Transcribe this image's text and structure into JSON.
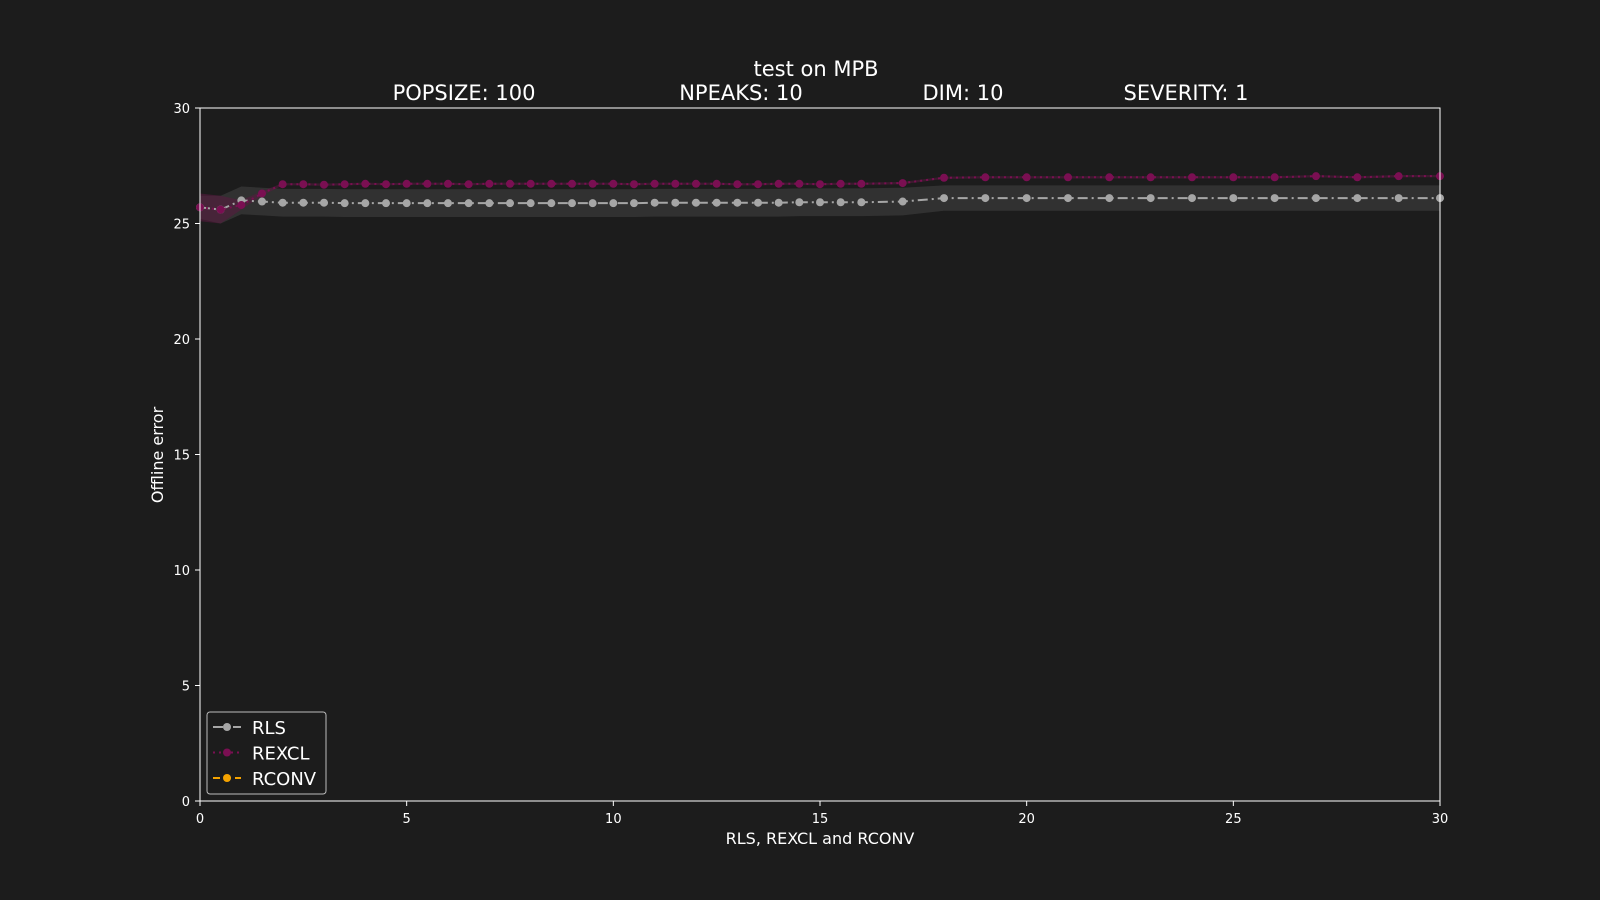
{
  "chart_data": {
    "type": "line",
    "title": "test on MPB",
    "subtitle": {
      "popsize": "POPSIZE: 100",
      "npeaks": "NPEAKS: 10",
      "dim": "DIM: 10",
      "severity": "SEVERITY: 1"
    },
    "xlabel": "RLS, REXCL and RCONV",
    "ylabel": "Offline error",
    "xlim": [
      0,
      30
    ],
    "ylim": [
      0,
      30
    ],
    "xticks": [
      0,
      5,
      10,
      15,
      20,
      25,
      30
    ],
    "yticks": [
      0,
      5,
      10,
      15,
      20,
      25,
      30
    ],
    "grid": false,
    "legend_position": "lower-left",
    "background_color": "#1c1c1c",
    "series": [
      {
        "name": "RLS",
        "color": "#a6a6a6",
        "linestyle": "dashdot",
        "band_color": "#444444",
        "x": [
          0,
          0.5,
          1,
          1.5,
          2,
          2.5,
          3,
          3.5,
          4,
          4.5,
          5,
          5.5,
          6,
          6.5,
          7,
          7.5,
          8,
          8.5,
          9,
          9.5,
          10,
          10.5,
          11,
          11.5,
          12,
          12.5,
          13,
          13.5,
          14,
          14.5,
          15,
          15.5,
          16,
          17,
          18,
          19,
          20,
          21,
          22,
          23,
          24,
          25,
          26,
          27,
          28,
          29,
          30
        ],
        "values": [
          25.7,
          25.6,
          26.0,
          25.95,
          25.9,
          25.9,
          25.9,
          25.88,
          25.88,
          25.88,
          25.88,
          25.88,
          25.88,
          25.88,
          25.88,
          25.88,
          25.88,
          25.88,
          25.88,
          25.88,
          25.88,
          25.88,
          25.9,
          25.9,
          25.9,
          25.9,
          25.9,
          25.9,
          25.9,
          25.92,
          25.92,
          25.92,
          25.92,
          25.95,
          26.1,
          26.1,
          26.1,
          26.1,
          26.1,
          26.1,
          26.1,
          26.1,
          26.1,
          26.1,
          26.1,
          26.1,
          26.1
        ],
        "band_halfwidth": [
          0.5,
          0.6,
          0.6,
          0.6,
          0.6,
          0.6,
          0.6,
          0.6,
          0.6,
          0.6,
          0.6,
          0.6,
          0.6,
          0.6,
          0.6,
          0.6,
          0.6,
          0.6,
          0.6,
          0.6,
          0.6,
          0.6,
          0.6,
          0.6,
          0.6,
          0.6,
          0.6,
          0.6,
          0.6,
          0.6,
          0.6,
          0.6,
          0.6,
          0.6,
          0.55,
          0.55,
          0.55,
          0.55,
          0.55,
          0.55,
          0.55,
          0.55,
          0.55,
          0.55,
          0.55,
          0.55,
          0.55
        ]
      },
      {
        "name": "REXCL",
        "color": "#7a0f52",
        "linestyle": "dotted",
        "band_color": "#5a1a40",
        "x": [
          0,
          0.5,
          1,
          1.5,
          2,
          2.5,
          3,
          3.5,
          4,
          4.5,
          5,
          5.5,
          6,
          6.5,
          7,
          7.5,
          8,
          8.5,
          9,
          9.5,
          10,
          10.5,
          11,
          11.5,
          12,
          12.5,
          13,
          13.5,
          14,
          14.5,
          15,
          15.5,
          16,
          17,
          18,
          19,
          20,
          21,
          22,
          23,
          24,
          25,
          26,
          27,
          28,
          29,
          30
        ],
        "values": [
          25.7,
          25.6,
          25.8,
          26.3,
          26.7,
          26.7,
          26.68,
          26.7,
          26.72,
          26.7,
          26.72,
          26.72,
          26.72,
          26.7,
          26.72,
          26.72,
          26.72,
          26.72,
          26.72,
          26.72,
          26.72,
          26.7,
          26.72,
          26.72,
          26.72,
          26.72,
          26.7,
          26.7,
          26.72,
          26.72,
          26.7,
          26.72,
          26.72,
          26.75,
          26.98,
          27.0,
          27.0,
          27.0,
          27.0,
          27.0,
          27.0,
          27.0,
          27.0,
          27.05,
          27.0,
          27.05,
          27.05
        ],
        "band_halfwidth": [
          0.6,
          0.6,
          0.2,
          0.1,
          0.05,
          0.05,
          0.05,
          0.05,
          0.05,
          0.05,
          0.05,
          0.05,
          0.05,
          0.05,
          0.05,
          0.05,
          0.05,
          0.05,
          0.05,
          0.05,
          0.05,
          0.05,
          0.05,
          0.05,
          0.05,
          0.05,
          0.05,
          0.05,
          0.05,
          0.05,
          0.05,
          0.05,
          0.05,
          0.05,
          0.05,
          0.05,
          0.05,
          0.05,
          0.05,
          0.05,
          0.05,
          0.05,
          0.05,
          0.05,
          0.05,
          0.05,
          0.05
        ]
      },
      {
        "name": "RCONV",
        "color": "#f5a300",
        "linestyle": "dashed",
        "x": [],
        "values": []
      }
    ]
  }
}
